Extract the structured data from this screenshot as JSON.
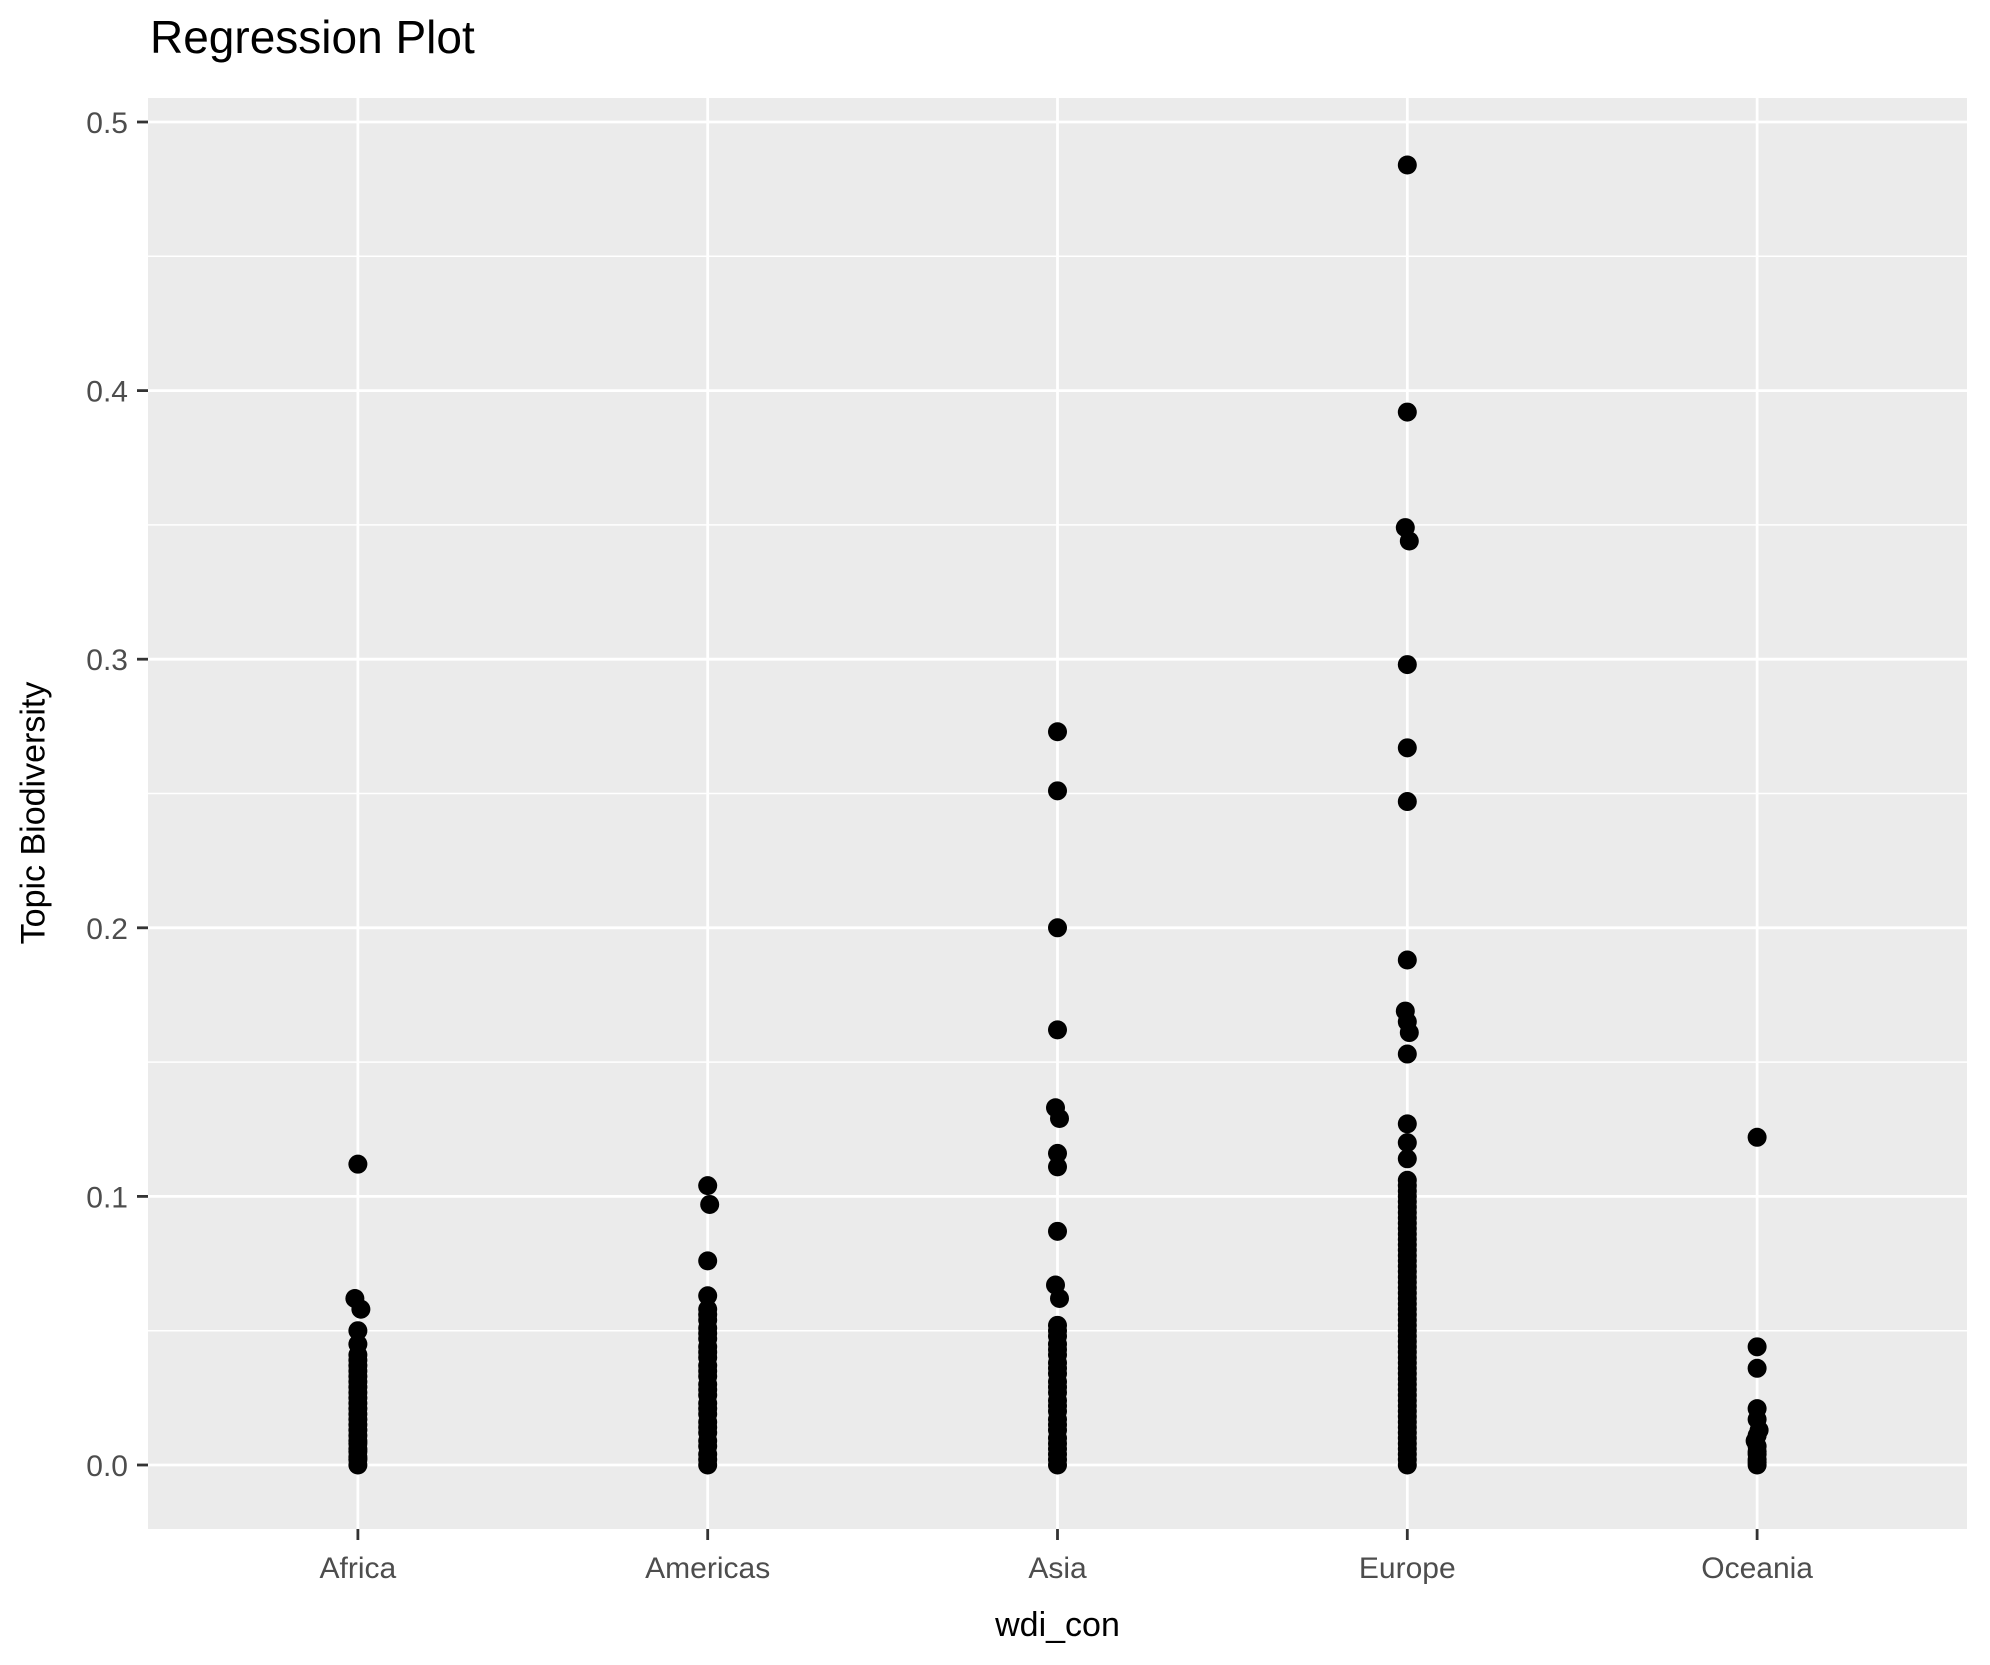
{
  "chart_data": {
    "type": "scatter",
    "subtype": "strip-plot",
    "title": "Regression Plot",
    "xlabel": "wdi_con",
    "ylabel": "Topic Biodiversity",
    "categories": [
      "Africa",
      "Americas",
      "Asia",
      "Europe",
      "Oceania"
    ],
    "y_ticks": [
      {
        "v": 0.0,
        "label": "0.0"
      },
      {
        "v": 0.1,
        "label": "0.1"
      },
      {
        "v": 0.2,
        "label": "0.2"
      },
      {
        "v": 0.3,
        "label": "0.3"
      },
      {
        "v": 0.4,
        "label": "0.4"
      },
      {
        "v": 0.5,
        "label": "0.5"
      }
    ],
    "y_minor_ticks": [
      0.05,
      0.15,
      0.25,
      0.35,
      0.45
    ],
    "ylim": [
      0.0,
      0.5
    ],
    "grid": true,
    "legend": "none",
    "colors": {
      "panel_bg": "#EBEBEB",
      "grid_major": "#FFFFFF",
      "grid_minor": "#FFFFFF",
      "point": "#000000",
      "tick_mark": "#333333",
      "tick_label": "#4D4D4D",
      "title_text": "#000000"
    },
    "series": [
      {
        "name": "Africa",
        "values": [
          0.112,
          [
            0.062,
            -3
          ],
          [
            0.058,
            3
          ],
          0.05,
          0.045,
          0.041,
          0.039,
          0.037,
          0.035,
          0.033,
          0.031,
          0.029,
          0.027,
          0.025,
          0.023,
          0.021,
          0.019,
          0.017,
          0.015,
          0.013,
          0.011,
          0.009,
          0.008,
          0.006,
          0.005,
          0.003,
          0.002,
          0.0
        ]
      },
      {
        "name": "Americas",
        "values": [
          0.104,
          [
            0.097,
            2
          ],
          0.076,
          0.063,
          0.058,
          0.056,
          0.054,
          0.051,
          0.049,
          0.047,
          0.044,
          0.042,
          0.04,
          0.037,
          0.035,
          0.033,
          0.03,
          0.028,
          0.026,
          0.023,
          0.021,
          0.019,
          0.016,
          0.014,
          0.012,
          0.009,
          0.007,
          0.004,
          0.002,
          0.0
        ]
      },
      {
        "name": "Asia",
        "values": [
          0.273,
          0.251,
          0.2,
          0.162,
          [
            0.133,
            -2
          ],
          [
            0.129,
            2
          ],
          0.116,
          0.111,
          0.087,
          [
            0.067,
            -2
          ],
          [
            0.062,
            2
          ],
          0.052,
          0.05,
          0.048,
          0.045,
          0.043,
          0.041,
          0.038,
          0.036,
          0.034,
          0.031,
          0.029,
          0.027,
          0.024,
          0.022,
          0.02,
          0.017,
          0.015,
          0.013,
          0.01,
          0.008,
          0.006,
          0.004,
          0.002,
          0.0
        ]
      },
      {
        "name": "Europe",
        "values": [
          0.484,
          0.392,
          [
            0.349,
            -2
          ],
          [
            0.344,
            2
          ],
          0.298,
          0.267,
          0.247,
          0.188,
          [
            0.169,
            -2
          ],
          0.165,
          [
            0.161,
            2
          ],
          0.153,
          0.127,
          0.12,
          0.114,
          0.106,
          0.104,
          0.102,
          0.1,
          0.098,
          0.096,
          0.094,
          0.092,
          0.09,
          0.088,
          0.086,
          0.084,
          0.082,
          0.08,
          0.078,
          0.076,
          0.074,
          0.072,
          0.07,
          0.068,
          0.066,
          0.064,
          0.062,
          0.06,
          0.058,
          0.056,
          0.054,
          0.052,
          0.05,
          0.048,
          0.046,
          0.044,
          0.042,
          0.04,
          0.038,
          0.036,
          0.034,
          0.032,
          0.03,
          0.028,
          0.026,
          0.024,
          0.022,
          0.02,
          0.018,
          0.016,
          0.014,
          0.012,
          0.01,
          0.008,
          0.006,
          0.004,
          0.002,
          0.0
        ]
      },
      {
        "name": "Oceania",
        "values": [
          0.122,
          0.044,
          0.036,
          0.021,
          0.017,
          [
            0.013,
            2
          ],
          0.011,
          [
            0.009,
            -2
          ],
          0.007,
          0.005,
          0.004,
          0.002,
          0.001,
          0.0
        ]
      }
    ]
  }
}
